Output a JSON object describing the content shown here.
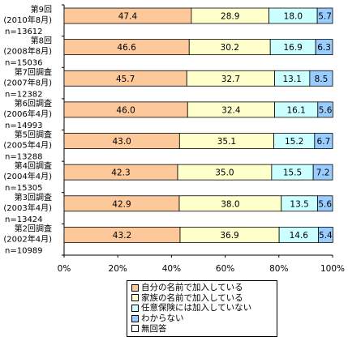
{
  "chart_data": {
    "type": "bar",
    "orientation": "horizontal",
    "stacked": true,
    "percent": true,
    "categories": [
      {
        "label": [
          "第9回",
          "(2010年8月)"
        ],
        "n": "n=13612"
      },
      {
        "label": [
          "第8回",
          "(2008年8月)"
        ],
        "n": "n=15036"
      },
      {
        "label": [
          "第7回調査",
          "(2007年8月)"
        ],
        "n": "n=12382"
      },
      {
        "label": [
          "第6回調査",
          "(2006年4月)"
        ],
        "n": "n=14993"
      },
      {
        "label": [
          "第5回調査",
          "(2005年4月)"
        ],
        "n": "n=13288"
      },
      {
        "label": [
          "第4回調査",
          "(2004年4月)"
        ],
        "n": "n=15305"
      },
      {
        "label": [
          "第3回調査",
          "(2003年4月)"
        ],
        "n": "n=13424"
      },
      {
        "label": [
          "第2回調査",
          "(2002年4月)"
        ],
        "n": "n=10989"
      }
    ],
    "series": [
      {
        "name": "自分の名前で加入している",
        "color": "#fdc89a",
        "values": [
          47.4,
          46.6,
          45.7,
          46.0,
          43.0,
          42.3,
          42.9,
          43.2
        ],
        "labels": [
          "47.4",
          "46.6",
          "45.7",
          "46.0",
          "43.0",
          "42.3",
          "42.9",
          "43.2"
        ]
      },
      {
        "name": "家族の名前で加入している",
        "color": "#ffffcc",
        "values": [
          28.9,
          30.2,
          32.7,
          32.4,
          35.1,
          35.0,
          38.0,
          36.9
        ],
        "labels": [
          "28.9",
          "30.2",
          "32.7",
          "32.4",
          "35.1",
          "35.0",
          "38.0",
          "36.9"
        ]
      },
      {
        "name": "任意保険には加入していない",
        "color": "#ccffff",
        "values": [
          18.0,
          16.9,
          13.1,
          16.1,
          15.2,
          15.5,
          13.5,
          14.6
        ],
        "labels": [
          "18.0",
          "16.9",
          "13.1",
          "16.1",
          "15.2",
          "15.5",
          "13.5",
          "14.6"
        ]
      },
      {
        "name": "わからない",
        "color": "#99ccff",
        "values": [
          5.7,
          6.3,
          8.5,
          5.6,
          6.7,
          7.2,
          5.6,
          5.4
        ],
        "labels": [
          "5.7",
          "6.3",
          "8.5",
          "5.6",
          "6.7",
          "7.2",
          "5.6",
          "5.4"
        ]
      },
      {
        "name": "無回答",
        "color": "#ffffff",
        "values": [
          0,
          0,
          0,
          0,
          0,
          0,
          0,
          0
        ],
        "labels": []
      }
    ],
    "xlim": [
      0,
      100
    ],
    "xticks": [
      "0%",
      "20%",
      "40%",
      "60%",
      "80%",
      "100%"
    ],
    "legend": "bottom"
  }
}
